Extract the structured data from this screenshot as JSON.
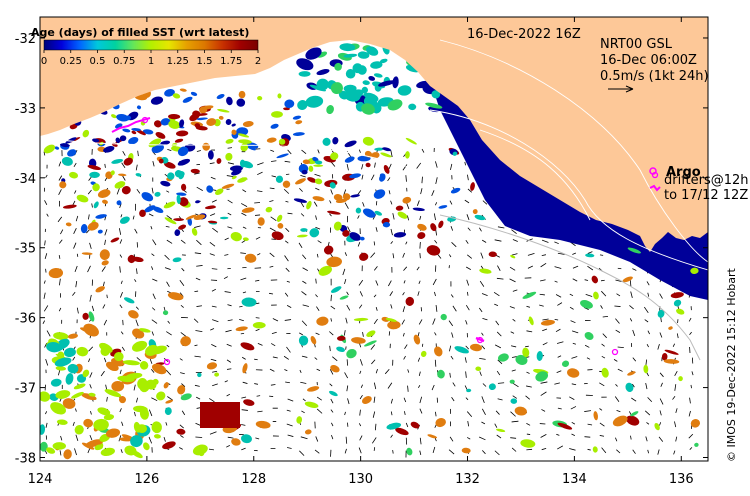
{
  "map": {
    "date_title": "16-Dec-2022 16Z",
    "product_label": "NRT00 GSL",
    "current_time": "16-Dec 06:00Z",
    "current_scale": "0.5m/s (1kt 24h)",
    "argo_label": "Argo",
    "drifters_line1": "drifters@12h",
    "drifters_line2": "to 17/12 12Z",
    "credit": "© IMOS 19-Dec-2022 15:12 Hobart",
    "colorbar": {
      "title": "Age (days) of filled SST (wrt latest)",
      "ticks": [
        "0",
        "0.25",
        "0.5",
        "0.75",
        "1",
        "1.25",
        "1.5",
        "1.75",
        "2"
      ],
      "min": 0,
      "max": 2,
      "colors": [
        "#00007a",
        "#0000dc",
        "#0064ff",
        "#00c8dc",
        "#00d2a0",
        "#64e65a",
        "#b4f000",
        "#e6e600",
        "#e6a000",
        "#dc7800",
        "#c83200",
        "#a00000",
        "#7a0000"
      ]
    },
    "x_axis": {
      "ticks": [
        "124",
        "126",
        "128",
        "130",
        "132",
        "134",
        "136"
      ],
      "values": [
        124,
        126,
        128,
        130,
        132,
        134,
        136
      ],
      "range": [
        124,
        136.5
      ]
    },
    "y_axis": {
      "ticks": [
        "-32",
        "-33",
        "-34",
        "-35",
        "-36",
        "-37",
        "-38"
      ],
      "values": [
        -32,
        -33,
        -34,
        -35,
        -36,
        -37,
        -38
      ],
      "range": [
        -38.05,
        -31.7
      ]
    },
    "colors": {
      "land": "#fdc898",
      "deep_blue": "#000099",
      "teal": "#00c0b0",
      "orange": "#e07d10",
      "dark_red": "#a00000",
      "lime": "#a8ee00",
      "bright_blue": "#0050e0",
      "green": "#30d060",
      "argo_magenta": "#ff00ff",
      "contour": "#ffffff",
      "bathymetry": "#bbbbbb"
    }
  }
}
